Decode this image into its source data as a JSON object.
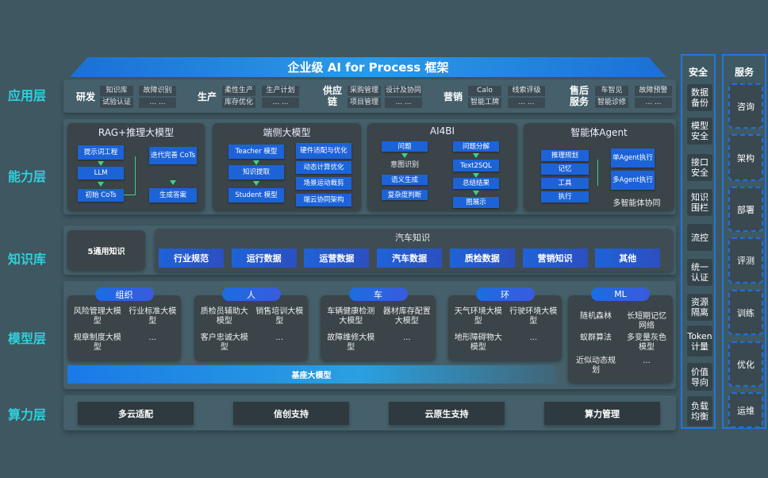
{
  "title": "企业级 AI for Process 框架",
  "layers": {
    "app": "应用层",
    "ability": "能力层",
    "knowledge": "知识库",
    "model": "模型层",
    "compute": "算力层"
  },
  "app_groups": [
    {
      "name": "研发",
      "cells": [
        "知识库",
        "故障识别",
        "试验认证",
        "... ..."
      ]
    },
    {
      "name": "生产",
      "cells": [
        "柔性生产",
        "生产计划",
        "库存优化",
        "... ..."
      ]
    },
    {
      "name": "供应链",
      "cells": [
        "采购管理",
        "设计及协同",
        "项目管理",
        "... ..."
      ]
    },
    {
      "name": "营销",
      "cells": [
        "Calo",
        "线索评级",
        "智能工牌",
        "... ..."
      ]
    },
    {
      "name": "售后服务",
      "cells": [
        "车智见",
        "故障预警",
        "智能诊修",
        "... ..."
      ]
    }
  ],
  "ability": {
    "rag": {
      "title": "RAG+推理大模型",
      "steps": [
        "提示词工程",
        "LLM",
        "初始 CoTs"
      ],
      "iter": "迭代完善 CoTs",
      "answer": "生成答案"
    },
    "edge": {
      "title": "端侧大模型",
      "steps": [
        "Teacher 模型",
        "知识提取",
        "Student 模型"
      ],
      "right": [
        "硬件适配与优化",
        "动态计算优化",
        "场景运动裁剪",
        "端云协同架构"
      ]
    },
    "ai4bi": {
      "title": "AI4BI",
      "left": [
        "问题",
        "意图识别",
        "语义生成",
        "复杂度判断"
      ],
      "right": [
        "问题分解",
        "Text2SQL",
        "总结结果",
        "图展示"
      ]
    },
    "agent": {
      "title": "智能体Agent",
      "left": [
        "推理规划",
        "记忆",
        "工具",
        "执行"
      ],
      "right": [
        "单Agent执行",
        "多Agent执行"
      ],
      "footer": "多智能体协同"
    }
  },
  "knowledge": {
    "general": "5通用知识",
    "auto_title": "汽车知识",
    "items": [
      "行业规范",
      "运行数据",
      "运营数据",
      "汽车数据",
      "质检数据",
      "营销知识",
      "其他"
    ]
  },
  "models": [
    {
      "name": "组织",
      "items": [
        "风险管理大模型",
        "行业标准大模型",
        "规章制度大模型",
        "..."
      ]
    },
    {
      "name": "人",
      "items": [
        "质检员辅助大模型",
        "销售培训大模型",
        "客户忠诚大模型",
        "..."
      ]
    },
    {
      "name": "车",
      "items": [
        "车辆健康检测大模型",
        "器材库存配置大模型",
        "故障维修大模型",
        "..."
      ]
    },
    {
      "name": "环",
      "items": [
        "天气环境大模型",
        "行驶环境大模型",
        "地形障碍物大模型",
        "..."
      ]
    },
    {
      "name": "ML",
      "items": [
        "随机森林",
        "长短期记忆网络",
        "蚁群算法",
        "多变量灰色模型",
        "近似动态规划",
        "..."
      ]
    }
  ],
  "base_model": "基座大模型",
  "compute": [
    "多云适配",
    "信创支持",
    "云原生支持",
    "算力管理"
  ],
  "security": {
    "title": "安全",
    "items": [
      "数据备份",
      "模型安全",
      "接口安全",
      "知识围栏",
      "流控",
      "统一认证",
      "资源隔离",
      "Token计量",
      "价值导向",
      "负载均衡"
    ]
  },
  "services": {
    "title": "服务",
    "items": [
      "咨询",
      "架构",
      "部署",
      "评测",
      "训练",
      "优化",
      "运维"
    ]
  }
}
